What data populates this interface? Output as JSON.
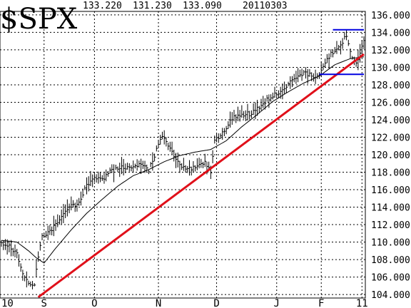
{
  "header": {
    "symbol": "$SPX",
    "open": "133.220",
    "low": "131.230",
    "close": "133.090",
    "date": "20110303"
  },
  "colors": {
    "background": "#ffffff",
    "grid": "#000000",
    "price_bars": "#000000",
    "moving_average": "#000000",
    "trendline": "#e0101a",
    "channel_lines": "#0000e0"
  },
  "chart_data": {
    "type": "line",
    "title": "$SPX",
    "subtitle": "133.220 131.230 133.090 20110303",
    "ylim": [
      103.6,
      136.4
    ],
    "xlim": [
      0,
      187
    ],
    "y_ticks": [
      "136.000",
      "134.000",
      "132.000",
      "130.000",
      "128.000",
      "126.000",
      "124.000",
      "122.000",
      "120.000",
      "118.000",
      "116.000",
      "114.000",
      "112.000",
      "110.000",
      "108.000",
      "106.000",
      "104.000"
    ],
    "x_tick_labels": [
      {
        "label": "10",
        "index": 0
      },
      {
        "label": "S",
        "index": 22
      },
      {
        "label": "O",
        "index": 48
      },
      {
        "label": "N",
        "index": 81
      },
      {
        "label": "D",
        "index": 111
      },
      {
        "label": "J",
        "index": 142
      },
      {
        "label": "F",
        "index": 165
      },
      {
        "label": "11",
        "index": 186
      }
    ],
    "grid": true,
    "series": [
      {
        "kind": "price",
        "anchors": [
          [
            0,
            110.0
          ],
          [
            4,
            109.5
          ],
          [
            8,
            108.8
          ],
          [
            11,
            106.2
          ],
          [
            14,
            105.5
          ],
          [
            17,
            105.0
          ],
          [
            19,
            108.5
          ],
          [
            21,
            110.5
          ],
          [
            25,
            111.3
          ],
          [
            28,
            112.0
          ],
          [
            32,
            113.3
          ],
          [
            36,
            114.2
          ],
          [
            40,
            114.5
          ],
          [
            44,
            116.5
          ],
          [
            48,
            117.4
          ],
          [
            52,
            117.2
          ],
          [
            56,
            118.0
          ],
          [
            60,
            118.4
          ],
          [
            64,
            118.6
          ],
          [
            68,
            118.5
          ],
          [
            72,
            119.0
          ],
          [
            76,
            118.2
          ],
          [
            80,
            120.5
          ],
          [
            83,
            122.3
          ],
          [
            86,
            121.2
          ],
          [
            89,
            119.8
          ],
          [
            93,
            118.6
          ],
          [
            97,
            118.4
          ],
          [
            101,
            118.6
          ],
          [
            105,
            119.0
          ],
          [
            108,
            118.0
          ],
          [
            110,
            121.5
          ],
          [
            113,
            122.2
          ],
          [
            116,
            123.2
          ],
          [
            120,
            124.3
          ],
          [
            124,
            124.6
          ],
          [
            128,
            124.7
          ],
          [
            132,
            125.3
          ],
          [
            136,
            126.1
          ],
          [
            140,
            126.7
          ],
          [
            144,
            127.3
          ],
          [
            148,
            128.1
          ],
          [
            152,
            128.7
          ],
          [
            156,
            129.4
          ],
          [
            160,
            129.1
          ],
          [
            164,
            129.0
          ],
          [
            167,
            130.6
          ],
          [
            170,
            131.5
          ],
          [
            173,
            132.0
          ],
          [
            176,
            132.9
          ],
          [
            178,
            133.7
          ],
          [
            179,
            132.5
          ],
          [
            181,
            131.2
          ],
          [
            183,
            130.5
          ],
          [
            185,
            131.6
          ],
          [
            186,
            132.4
          ],
          [
            187,
            133.09
          ]
        ]
      },
      {
        "kind": "moving_average",
        "anchors": [
          [
            0,
            110.2
          ],
          [
            8,
            110.0
          ],
          [
            14,
            109.0
          ],
          [
            18,
            108.2
          ],
          [
            22,
            107.6
          ],
          [
            28,
            109.3
          ],
          [
            36,
            111.4
          ],
          [
            44,
            113.3
          ],
          [
            52,
            114.9
          ],
          [
            60,
            116.4
          ],
          [
            68,
            117.6
          ],
          [
            76,
            118.3
          ],
          [
            84,
            119.2
          ],
          [
            92,
            119.9
          ],
          [
            100,
            120.3
          ],
          [
            108,
            120.6
          ],
          [
            116,
            121.6
          ],
          [
            124,
            123.2
          ],
          [
            132,
            124.6
          ],
          [
            140,
            126.1
          ],
          [
            148,
            127.2
          ],
          [
            156,
            128.2
          ],
          [
            164,
            129.0
          ],
          [
            172,
            130.3
          ],
          [
            180,
            131.0
          ],
          [
            187,
            131.2
          ]
        ]
      },
      {
        "kind": "trendline",
        "points": [
          [
            19,
            103.7
          ],
          [
            187,
            131.5
          ]
        ]
      },
      {
        "kind": "resistance",
        "points": [
          [
            171,
            134.3
          ],
          [
            187,
            134.3
          ]
        ]
      },
      {
        "kind": "support",
        "points": [
          [
            164,
            129.2
          ],
          [
            187,
            129.2
          ]
        ]
      }
    ]
  }
}
